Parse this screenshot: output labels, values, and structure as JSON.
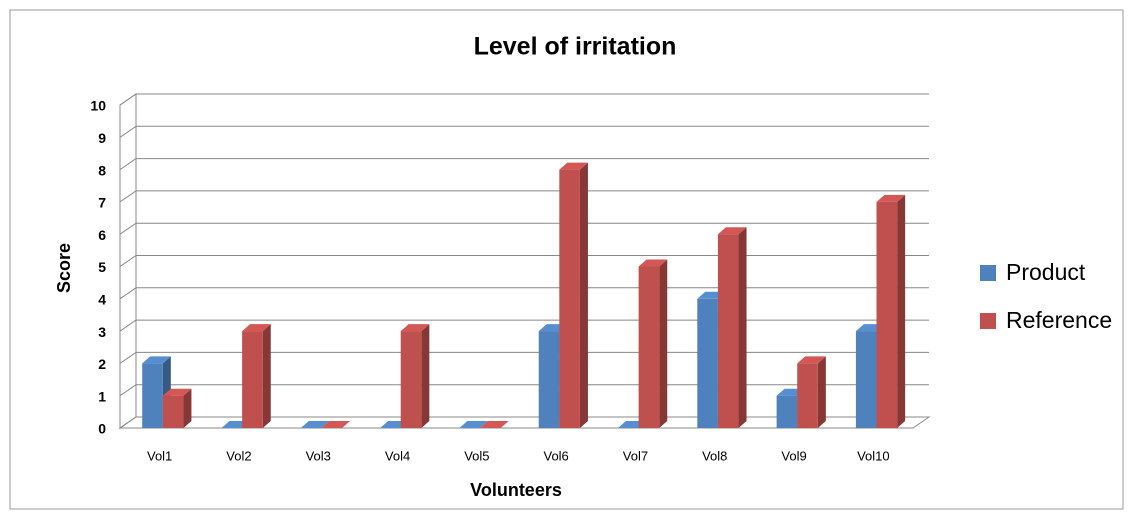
{
  "chart_data": {
    "type": "bar3d",
    "title": "Level of irritation",
    "x_label": "Volunteers",
    "y_label": "Score",
    "categories": [
      "Vol1",
      "Vol2",
      "Vol3",
      "Vol4",
      "Vol5",
      "Vol6",
      "Vol7",
      "Vol8",
      "Vol9",
      "Vol10"
    ],
    "series": [
      {
        "name": "Product",
        "color": "#4f81bd",
        "values": [
          2,
          0,
          0,
          0,
          0,
          3,
          0,
          4,
          1,
          3
        ]
      },
      {
        "name": "Reference",
        "color": "#c0504d",
        "values": [
          1,
          3,
          0,
          3,
          0,
          8,
          5,
          6,
          2,
          7
        ]
      }
    ],
    "ylim": [
      0,
      10
    ],
    "yticks": [
      0,
      1,
      2,
      3,
      4,
      5,
      6,
      7,
      8,
      9,
      10
    ],
    "grid": true,
    "legend": "right"
  }
}
